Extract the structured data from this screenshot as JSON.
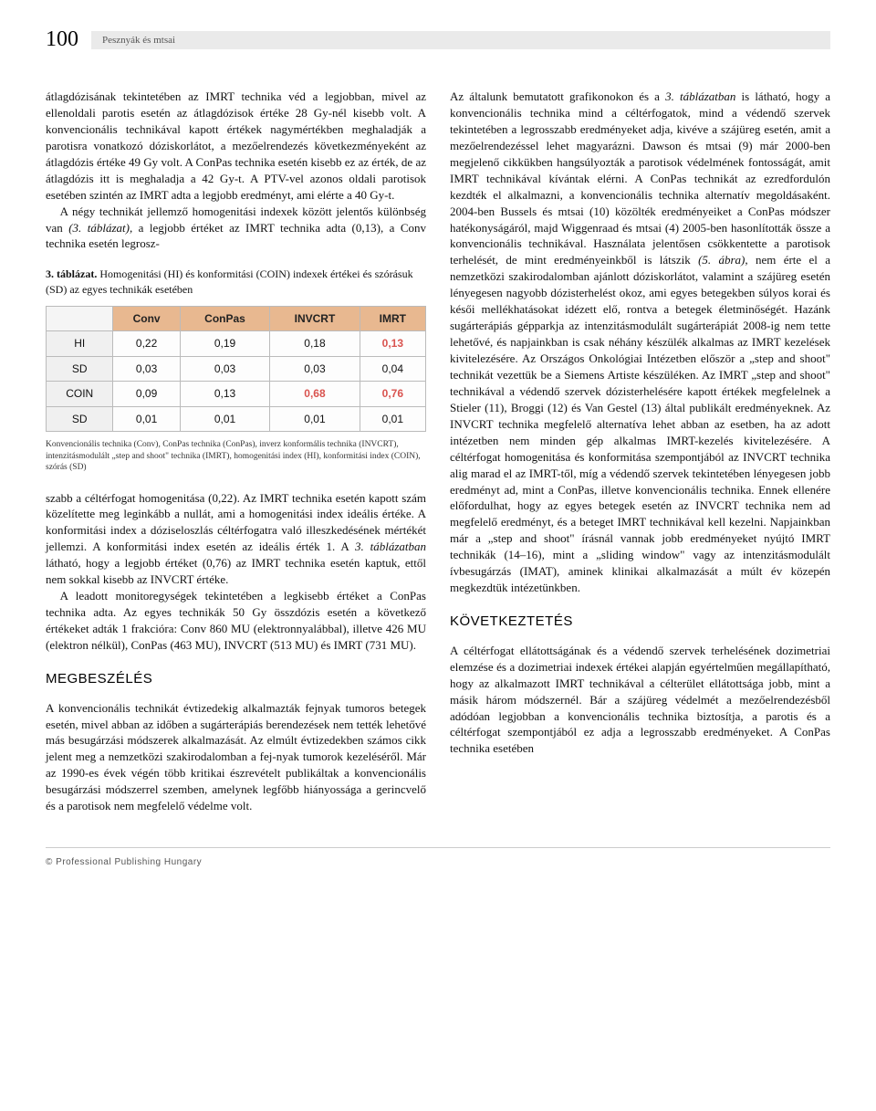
{
  "header": {
    "page_number": "100",
    "authors": "Pesznyák és mtsai"
  },
  "left_column": {
    "para1": "átlagdózisának tekintetében az IMRT technika véd a legjobban, mivel az ellenoldali parotis esetén az átlagdózisok értéke 28 Gy-nél kisebb volt. A konvencionális technikával kapott értékek nagymértékben meghaladják a parotisra vonatkozó dóziskorlátot, a mezőelrendezés következményeként az átlagdózis értéke 49 Gy volt. A ConPas technika esetén kisebb ez az érték, de az átlagdózis itt is meghaladja a 42 Gy-t. A PTV-vel azonos oldali parotisok esetében szintén az IMRT adta a legjobb eredményt, ami elérte a 40 Gy-t.",
    "para2_a": "A négy technikát jellemző homogenitási indexek között jelentős különbség van ",
    "para2_ital": "(3. táblázat),",
    "para2_b": " a legjobb értéket az IMRT technika adta (0,13), a Conv technika esetén legrosz-",
    "table_caption_bold": "3. táblázat.",
    "table_caption_rest": " Homogenitási (HI) és konformitási (COIN) indexek értékei és szórásuk (SD) az egyes technikák esetében",
    "table_note": "Konvencionális technika (Conv), ConPas technika (ConPas), inverz konformális technika (INVCRT), intenzitásmodulált „step and shoot\" technika (IMRT), homogenitási index (HI), konformitási index (COIN), szórás (SD)",
    "para3_a": "szabb a céltérfogat homogenitása (0,22). Az IMRT technika esetén kapott szám közelítette meg leginkább a nullát, ami a homogenitási index ideális értéke. A konformitási index a dóziseloszlás céltérfogatra való illeszkedésének mértékét jellemzi. A konformitási index esetén az ideális érték 1. A ",
    "para3_ital": "3. táblázatban",
    "para3_b": " látható, hogy a legjobb értéket (0,76) az IMRT technika esetén kaptuk, ettől nem sokkal kisebb az INVCRT értéke.",
    "para4": "A leadott monitoregységek tekintetében a legkisebb értéket a ConPas technika adta. Az egyes technikák 50 Gy összdózis esetén a következő értékeket adták 1 frakcióra: Conv 860 MU (elektronnyalábbal), illetve 426 MU (elektron nélkül), ConPas (463 MU), INVCRT (513 MU) és IMRT (731 MU).",
    "heading_discussion": "MEGBESZÉLÉS",
    "para5": "A konvencionális technikát évtizedekig alkalmazták fejnyak tumoros betegek esetén, mivel abban az időben a sugárterápiás berendezések nem tették lehetővé más besugárzási módszerek alkalmazását. Az elmúlt évtizedekben számos cikk jelent meg a nemzetközi szakirodalomban a fej-nyak tumorok kezeléséről. Már az 1990-es évek végén több kritikai észrevételt publikáltak a konvencionális besugárzási módszerrel szemben, amelynek legfőbb hiányossága a gerincvelő és a parotisok nem megfelelő védelme volt."
  },
  "right_column": {
    "para1_a": "Az általunk bemutatott grafikonokon és a ",
    "para1_ital": "3. táblázatban",
    "para1_b": " is látható, hogy a konvencionális technika mind a céltérfogatok, mind a védendő szervek tekintetében a legrosszabb eredményeket adja, kivéve a szájüreg esetén, amit a mezőelrendezéssel lehet magyarázni. Dawson és mtsai (9) már 2000-ben megjelenő cikkükben hangsúlyozták a parotisok védelmének fontosságát, amit IMRT technikával kívántak elérni. A ConPas technikát az ezredfordulón kezdték el alkalmazni, a konvencionális technika alternatív megoldásaként. 2004-ben Bussels és mtsai (10) közölték eredményeiket a ConPas módszer hatékonyságáról, majd Wiggenraad és mtsai (4) 2005-ben hasonlították össze a konvencionális technikával. Használata jelentősen csökkentette a parotisok terhelését, de mint eredményeinkből is látszik ",
    "para1_ital2": "(5. ábra),",
    "para1_c": " nem érte el a nemzetközi szakirodalomban ajánlott dóziskorlátot, valamint a szájüreg esetén lényegesen nagyobb dózisterhelést okoz, ami egyes betegekben súlyos korai és késői mellékhatásokat idézett elő, rontva a betegek életminőségét. Hazánk sugárterápiás gépparkja az intenzitásmodulált sugárterápiát 2008-ig nem tette lehetővé, és napjainkban is csak néhány készülék alkalmas az IMRT kezelések kivitelezésére. Az Országos Onkológiai Intézetben először a „step and shoot\" technikát vezettük be a Siemens Artiste készüléken. Az IMRT „step and shoot\" technikával a védendő szervek dózisterhelésére kapott értékek megfelelnek a Stieler (11), Broggi (12) és Van Gestel (13) által publikált eredményeknek. Az INVCRT technika megfelelő alternatíva lehet abban az esetben, ha az adott intézetben nem minden gép alkalmas IMRT-kezelés kivitelezésére. A céltérfogat homogenitása és konformitása szempontjából az INVCRT technika alig marad el az IMRT-től, míg a védendő szervek tekintetében lényegesen jobb eredményt ad, mint a ConPas, illetve konvencionális technika. Ennek ellenére előfordulhat, hogy az egyes betegek esetén az INVCRT technika nem ad megfelelő eredményt, és a beteget IMRT technikával kell kezelni. Napjainkban már a „step and shoot\" írásnál vannak jobb eredményeket nyújtó IMRT technikák (14–16), mint a „sliding window\" vagy az intenzitásmodulált ívbesugárzás (IMAT), aminek klinikai alkalmazását a múlt év közepén megkezdtük intézetünkben.",
    "heading_conclusion": "KÖVETKEZTETÉS",
    "para2": "A céltérfogat ellátottságának és a védendő szervek terhelésének dozimetriai elemzése és a dozimetriai indexek értékei alapján egyértelműen megállapítható, hogy az alkalmazott IMRT technikával a célterület ellátottsága jobb, mint a másik három módszernél. Bár a szájüreg védelmét a mezőelrendezésből adódóan legjobban a konvencionális technika biztosítja, a parotis és a céltérfogat szempontjából ez adja a legrosszabb eredményeket. A ConPas technika esetében"
  },
  "table": {
    "columns": [
      "",
      "Conv",
      "ConPas",
      "INVCRT",
      "IMRT"
    ],
    "rows": [
      {
        "label": "HI",
        "cells": [
          "0,22",
          "0,19",
          "0,18",
          "0,13"
        ],
        "highlight": [
          false,
          false,
          false,
          true
        ]
      },
      {
        "label": "SD",
        "cells": [
          "0,03",
          "0,03",
          "0,03",
          "0,04"
        ],
        "highlight": [
          false,
          false,
          false,
          false
        ]
      },
      {
        "label": "COIN",
        "cells": [
          "0,09",
          "0,13",
          "0,68",
          "0,76"
        ],
        "highlight": [
          false,
          false,
          true,
          true
        ]
      },
      {
        "label": "SD",
        "cells": [
          "0,01",
          "0,01",
          "0,01",
          "0,01"
        ],
        "highlight": [
          false,
          false,
          false,
          false
        ]
      }
    ],
    "header_bg": "#e8b890",
    "highlight_color": "#d9534f"
  },
  "footer": {
    "publisher": "© Professional Publishing Hungary"
  }
}
